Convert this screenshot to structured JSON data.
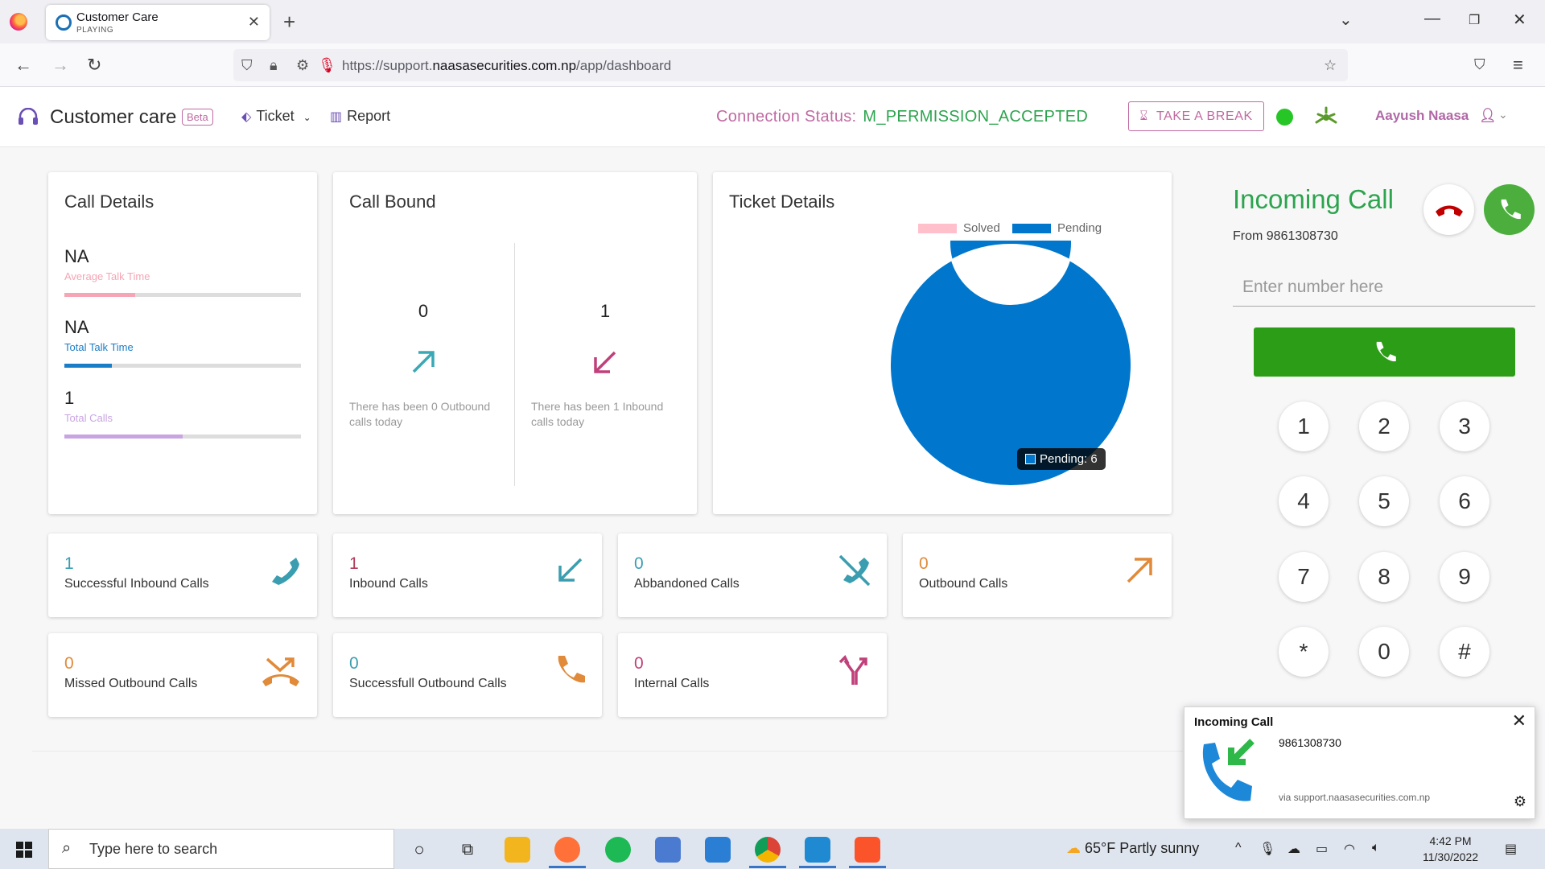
{
  "browser": {
    "tab_title": "Customer Care",
    "tab_status": "PLAYING",
    "url_prefix": "https://support.",
    "url_domain": "naasasecurities.com.np",
    "url_path": "/app/dashboard"
  },
  "header": {
    "brand": "Customer care",
    "beta": "Beta",
    "menu_ticket": "Ticket",
    "menu_report": "Report",
    "connection_label": "Connection Status:",
    "connection_value": "M_PERMISSION_ACCEPTED",
    "break_button": "TAKE A BREAK",
    "user_name": "Aayush Naasa",
    "status_color": "#27c627"
  },
  "call_details": {
    "title": "Call Details",
    "metrics": [
      {
        "value": "NA",
        "label": "Average Talk Time",
        "color": "#f5a5b5",
        "fill": 0.3
      },
      {
        "value": "NA",
        "label": "Total Talk Time",
        "color": "#1a7dc7",
        "fill": 0.2
      },
      {
        "value": "1",
        "label": "Total Calls",
        "color": "#c9a4e3",
        "fill": 0.5
      }
    ]
  },
  "call_bound": {
    "title": "Call Bound",
    "outbound_count": "0",
    "outbound_desc": "There has been 0 Outbound calls today",
    "inbound_count": "1",
    "inbound_desc": "There has been 1 Inbound calls today"
  },
  "ticket_details": {
    "title": "Ticket Details",
    "tooltip": "Pending: 6"
  },
  "chart_data": {
    "type": "pie",
    "donut": true,
    "categories": [
      "Solved",
      "Pending"
    ],
    "values": [
      0,
      6
    ],
    "colors": [
      "#ffc0cb",
      "#0077cc"
    ],
    "legend": "top"
  },
  "stats": [
    {
      "value": "1",
      "label": "Successful Inbound Calls",
      "color": "#3a9eb0",
      "icon": "phone-icon"
    },
    {
      "value": "1",
      "label": "Inbound Calls",
      "color": "#b03a5b",
      "icon": "arrow-down-left-icon"
    },
    {
      "value": "0",
      "label": "Abbandoned Calls",
      "color": "#3a9eb0",
      "icon": "phone-off-icon"
    },
    {
      "value": "0",
      "label": "Outbound Calls",
      "color": "#e08a3a",
      "icon": "arrow-up-right-icon"
    },
    {
      "value": "0",
      "label": "Missed Outbound Calls",
      "color": "#e08a3a",
      "icon": "missed-call-icon"
    },
    {
      "value": "0",
      "label": "Successfull Outbound Calls",
      "color": "#3a9eb0",
      "icon": "phone-icon"
    },
    {
      "value": "0",
      "label": "Internal Calls",
      "color": "#c0407a",
      "icon": "split-arrows-icon"
    }
  ],
  "dialer": {
    "title": "Incoming Call",
    "from": "From 9861308730",
    "placeholder": "Enter number here",
    "keys": [
      "1",
      "2",
      "3",
      "4",
      "5",
      "6",
      "7",
      "8",
      "9",
      "*",
      "0",
      "#"
    ]
  },
  "notification": {
    "title": "Incoming Call",
    "number": "9861308730",
    "via": "via support.naasasecurities.com.np"
  },
  "taskbar": {
    "search_placeholder": "Type here to search",
    "weather": "65°F  Partly sunny",
    "time": "4:42 PM",
    "date": "11/30/2022"
  }
}
